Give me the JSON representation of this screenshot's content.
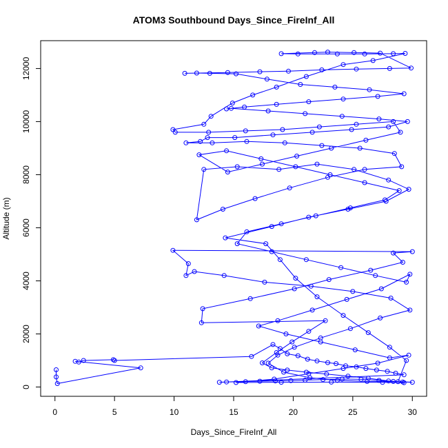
{
  "chart_data": {
    "type": "line",
    "title": "ATOM3 Southbound Days_Since_FireInf_All",
    "xlabel": "Days_Since_FireInf_All",
    "ylabel": "Altitude (m)",
    "xlim": [
      -1.2,
      31.2
    ],
    "ylim": [
      -350,
      13050
    ],
    "x_ticks": [
      0,
      5,
      10,
      15,
      20,
      25,
      30
    ],
    "y_ticks": [
      0,
      2000,
      4000,
      6000,
      8000,
      10000,
      12000
    ],
    "grid": false,
    "legend": "none",
    "series_color": "#0000FF",
    "marker": "open-circle",
    "series": [
      {
        "points": [
          [
            0.1,
            650
          ],
          [
            0.1,
            380
          ],
          [
            0.2,
            130
          ],
          [
            7.2,
            720
          ],
          [
            1.7,
            970
          ],
          [
            2.0,
            940
          ],
          [
            2.4,
            1000
          ],
          [
            4.9,
            1030
          ],
          [
            5.0,
            1000
          ],
          [
            16.5,
            1150
          ],
          [
            18.3,
            1600
          ],
          [
            18.9,
            1450
          ],
          [
            19.5,
            1250
          ],
          [
            20.4,
            1180
          ],
          [
            21.2,
            1050
          ],
          [
            22.0,
            980
          ],
          [
            22.9,
            920
          ],
          [
            23.6,
            880
          ],
          [
            24.4,
            800
          ],
          [
            25.3,
            760
          ],
          [
            26.1,
            700
          ],
          [
            27.0,
            640
          ],
          [
            27.9,
            590
          ],
          [
            28.6,
            520
          ],
          [
            29.3,
            460
          ],
          [
            13.8,
            180
          ],
          [
            14.4,
            190
          ],
          [
            17.2,
            220
          ],
          [
            18.5,
            230
          ],
          [
            19.8,
            240
          ],
          [
            21.0,
            260
          ],
          [
            22.5,
            280
          ],
          [
            24.1,
            300
          ],
          [
            25.7,
            290
          ],
          [
            27.2,
            250
          ],
          [
            28.4,
            210
          ],
          [
            29.2,
            190
          ],
          [
            30.0,
            180
          ],
          [
            28.0,
            230
          ],
          [
            26.3,
            330
          ],
          [
            24.6,
            410
          ],
          [
            22.8,
            490
          ],
          [
            21.1,
            560
          ],
          [
            19.5,
            640
          ],
          [
            18.2,
            720
          ],
          [
            17.4,
            910
          ],
          [
            18.6,
            1300
          ],
          [
            19.9,
            1700
          ],
          [
            21.3,
            2100
          ],
          [
            22.7,
            2500
          ],
          [
            12.3,
            2420
          ],
          [
            12.4,
            2950
          ],
          [
            16.4,
            3330
          ],
          [
            20.1,
            3700
          ],
          [
            23.0,
            4050
          ],
          [
            26.5,
            4400
          ],
          [
            29.2,
            4700
          ],
          [
            28.4,
            5050
          ],
          [
            30.0,
            5100
          ],
          [
            9.9,
            5150
          ],
          [
            11.2,
            4650
          ],
          [
            11.0,
            4200
          ],
          [
            11.7,
            4350
          ],
          [
            14.2,
            4200
          ],
          [
            17.6,
            3950
          ],
          [
            21.5,
            3800
          ],
          [
            25.0,
            3600
          ],
          [
            28.2,
            3350
          ],
          [
            29.8,
            2900
          ],
          [
            27.3,
            2600
          ],
          [
            24.8,
            2200
          ],
          [
            22.3,
            1850
          ],
          [
            20.1,
            1500
          ],
          [
            18.7,
            1200
          ],
          [
            17.9,
            900
          ],
          [
            19.2,
            560
          ],
          [
            21.4,
            350
          ],
          [
            23.7,
            250
          ],
          [
            26.2,
            210
          ],
          [
            28.8,
            200
          ],
          [
            29.5,
            1000
          ],
          [
            28.1,
            1500
          ],
          [
            26.3,
            2050
          ],
          [
            24.2,
            2700
          ],
          [
            22.0,
            3400
          ],
          [
            20.2,
            4100
          ],
          [
            18.9,
            4800
          ],
          [
            17.7,
            5400
          ],
          [
            14.3,
            5620
          ],
          [
            18.2,
            6050
          ],
          [
            21.3,
            6400
          ],
          [
            24.6,
            6700
          ],
          [
            27.8,
            7000
          ],
          [
            29.7,
            7450
          ],
          [
            28.0,
            7800
          ],
          [
            25.1,
            8200
          ],
          [
            22.0,
            8400
          ],
          [
            18.8,
            8200
          ],
          [
            15.3,
            8300
          ],
          [
            12.5,
            8200
          ],
          [
            11.9,
            6300
          ],
          [
            14.1,
            6700
          ],
          [
            16.8,
            7100
          ],
          [
            19.7,
            7500
          ],
          [
            22.9,
            7900
          ],
          [
            26.0,
            8200
          ],
          [
            29.1,
            8300
          ],
          [
            28.5,
            8800
          ],
          [
            25.6,
            9000
          ],
          [
            22.4,
            9100
          ],
          [
            19.3,
            9200
          ],
          [
            16.1,
            9250
          ],
          [
            13.2,
            9200
          ],
          [
            11.0,
            9200
          ],
          [
            12.2,
            9250
          ],
          [
            12.8,
            9400
          ],
          [
            15.1,
            9400
          ],
          [
            18.3,
            9500
          ],
          [
            21.6,
            9600
          ],
          [
            24.9,
            9700
          ],
          [
            28.0,
            9800
          ],
          [
            29.6,
            10000
          ],
          [
            27.2,
            10100
          ],
          [
            24.1,
            10200
          ],
          [
            21.0,
            10300
          ],
          [
            17.9,
            10400
          ],
          [
            14.8,
            10500
          ],
          [
            14.4,
            10480
          ],
          [
            15.9,
            10550
          ],
          [
            18.6,
            10650
          ],
          [
            21.3,
            10750
          ],
          [
            24.2,
            10850
          ],
          [
            27.1,
            10950
          ],
          [
            29.3,
            11050
          ],
          [
            26.4,
            11200
          ],
          [
            23.5,
            11300
          ],
          [
            20.6,
            11400
          ],
          [
            17.8,
            11600
          ],
          [
            15.2,
            11800
          ],
          [
            13.0,
            11820
          ],
          [
            11.9,
            11830
          ],
          [
            10.9,
            11820
          ],
          [
            14.5,
            11850
          ],
          [
            17.2,
            11880
          ],
          [
            19.6,
            11900
          ],
          [
            22.4,
            11950
          ],
          [
            25.3,
            11980
          ],
          [
            28.1,
            12000
          ],
          [
            29.9,
            12020
          ],
          [
            27.3,
            12580
          ],
          [
            25.1,
            12600
          ],
          [
            22.9,
            12620
          ],
          [
            21.8,
            12600
          ],
          [
            19.0,
            12560
          ],
          [
            20.4,
            12550
          ],
          [
            23.7,
            12550
          ],
          [
            26.0,
            12550
          ],
          [
            28.4,
            12560
          ],
          [
            29.4,
            12570
          ],
          [
            26.7,
            12300
          ],
          [
            24.2,
            12150
          ],
          [
            21.1,
            11700
          ],
          [
            18.6,
            11300
          ],
          [
            16.6,
            11000
          ],
          [
            14.9,
            10700
          ],
          [
            13.1,
            10200
          ],
          [
            12.5,
            9900
          ],
          [
            9.9,
            9700
          ],
          [
            10.1,
            9600
          ],
          [
            12.9,
            9600
          ],
          [
            16.0,
            9650
          ],
          [
            19.1,
            9700
          ],
          [
            22.2,
            9800
          ],
          [
            25.3,
            9900
          ],
          [
            28.4,
            10000
          ],
          [
            29.0,
            9600
          ],
          [
            26.1,
            9300
          ],
          [
            23.2,
            9000
          ],
          [
            20.3,
            8700
          ],
          [
            17.4,
            8400
          ],
          [
            14.5,
            8100
          ],
          [
            12.1,
            8750
          ],
          [
            14.4,
            8900
          ],
          [
            17.3,
            8600
          ],
          [
            20.2,
            8300
          ],
          [
            23.1,
            8000
          ],
          [
            26.0,
            7700
          ],
          [
            28.9,
            7400
          ],
          [
            27.7,
            7050
          ],
          [
            24.8,
            6750
          ],
          [
            21.9,
            6450
          ],
          [
            19.0,
            6150
          ],
          [
            16.1,
            5850
          ],
          [
            15.3,
            5400
          ],
          [
            18.2,
            5100
          ],
          [
            21.1,
            4800
          ],
          [
            24.0,
            4500
          ],
          [
            26.9,
            4200
          ],
          [
            29.5,
            3950
          ],
          [
            29.8,
            4250
          ],
          [
            27.4,
            3700
          ],
          [
            24.5,
            3300
          ],
          [
            21.6,
            2900
          ],
          [
            18.7,
            2500
          ],
          [
            17.1,
            2300
          ],
          [
            19.4,
            2000
          ],
          [
            22.3,
            1700
          ],
          [
            25.2,
            1400
          ],
          [
            28.1,
            1100
          ],
          [
            29.7,
            1200
          ],
          [
            27.1,
            900
          ],
          [
            24.2,
            700
          ],
          [
            21.3,
            500
          ],
          [
            18.4,
            300
          ],
          [
            16.0,
            200
          ],
          [
            15.2,
            170
          ],
          [
            19.0,
            180
          ],
          [
            23.2,
            185
          ],
          [
            27.5,
            175
          ],
          [
            29.3,
            165
          ]
        ]
      }
    ]
  }
}
